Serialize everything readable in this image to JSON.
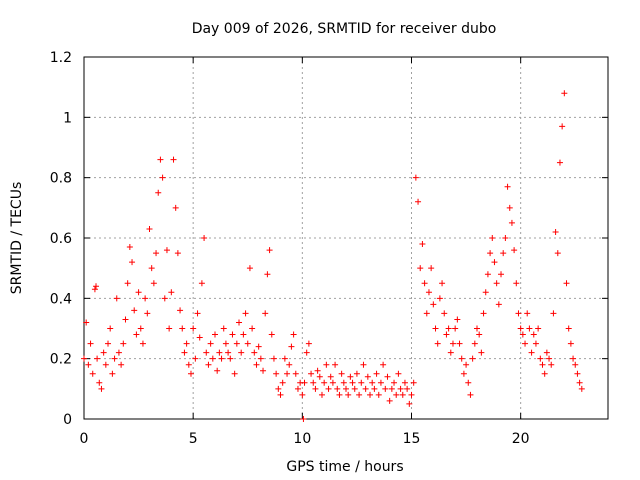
{
  "chart_data": {
    "type": "scatter",
    "title": "Day 009 of 2026, SRMTID for receiver dubo",
    "xlabel": "GPS time / hours",
    "ylabel": "SRMTID / TECUs",
    "xlim": [
      0,
      24
    ],
    "ylim": [
      0,
      1.2
    ],
    "x_ticks": [
      0,
      5,
      10,
      15,
      20
    ],
    "y_ticks": [
      0,
      0.2,
      0.4,
      0.6,
      0.8,
      1,
      1.2
    ],
    "x_tick_labels": [
      "0",
      "5",
      "10",
      "15",
      "20"
    ],
    "y_tick_labels": [
      "0",
      "0.2",
      "0.4",
      "0.6",
      "0.8",
      "1",
      "1.2"
    ],
    "grid": true,
    "marker": "+",
    "color": "#ff0000",
    "series": [
      {
        "name": "SRMTID",
        "x": [
          0.0,
          0.1,
          0.2,
          0.3,
          0.4,
          0.5,
          0.55,
          0.6,
          0.7,
          0.8,
          0.9,
          1.0,
          1.1,
          1.2,
          1.3,
          1.4,
          1.5,
          1.6,
          1.7,
          1.8,
          1.9,
          2.0,
          2.1,
          2.2,
          2.3,
          2.4,
          2.5,
          2.6,
          2.7,
          2.8,
          2.9,
          3.0,
          3.1,
          3.2,
          3.3,
          3.4,
          3.5,
          3.6,
          3.7,
          3.8,
          3.9,
          4.0,
          4.1,
          4.2,
          4.3,
          4.4,
          4.5,
          4.6,
          4.7,
          4.8,
          4.9,
          5.0,
          5.1,
          5.2,
          5.3,
          5.4,
          5.5,
          5.6,
          5.7,
          5.8,
          5.9,
          6.0,
          6.1,
          6.2,
          6.3,
          6.4,
          6.5,
          6.6,
          6.7,
          6.8,
          6.9,
          7.0,
          7.1,
          7.2,
          7.3,
          7.4,
          7.5,
          7.6,
          7.7,
          7.8,
          7.9,
          8.0,
          8.1,
          8.2,
          8.3,
          8.4,
          8.5,
          8.6,
          8.7,
          8.8,
          8.9,
          9.0,
          9.1,
          9.2,
          9.3,
          9.4,
          9.5,
          9.6,
          9.7,
          9.8,
          9.9,
          10.0,
          10.05,
          10.1,
          10.2,
          10.3,
          10.4,
          10.5,
          10.6,
          10.7,
          10.8,
          10.9,
          11.0,
          11.1,
          11.2,
          11.3,
          11.4,
          11.5,
          11.6,
          11.7,
          11.8,
          11.9,
          12.0,
          12.1,
          12.2,
          12.3,
          12.4,
          12.5,
          12.6,
          12.7,
          12.8,
          12.9,
          13.0,
          13.1,
          13.2,
          13.3,
          13.4,
          13.5,
          13.6,
          13.7,
          13.8,
          13.9,
          14.0,
          14.1,
          14.2,
          14.3,
          14.4,
          14.5,
          14.6,
          14.7,
          14.8,
          14.9,
          15.0,
          15.1,
          15.2,
          15.3,
          15.4,
          15.5,
          15.6,
          15.7,
          15.8,
          15.9,
          16.0,
          16.1,
          16.2,
          16.3,
          16.4,
          16.5,
          16.6,
          16.7,
          16.8,
          16.9,
          17.0,
          17.1,
          17.2,
          17.3,
          17.4,
          17.5,
          17.6,
          17.7,
          17.8,
          17.9,
          18.0,
          18.1,
          18.2,
          18.3,
          18.4,
          18.5,
          18.6,
          18.7,
          18.8,
          18.9,
          19.0,
          19.1,
          19.2,
          19.3,
          19.4,
          19.5,
          19.6,
          19.7,
          19.8,
          19.9,
          20.0,
          20.1,
          20.2,
          20.3,
          20.4,
          20.5,
          20.6,
          20.7,
          20.8,
          20.9,
          21.0,
          21.1,
          21.2,
          21.3,
          21.4,
          21.5,
          21.6,
          21.7,
          21.8,
          21.9,
          22.0,
          22.1,
          22.2,
          22.3,
          22.4,
          22.5,
          22.6,
          22.7,
          22.8
        ],
        "y": [
          0.2,
          0.32,
          0.18,
          0.25,
          0.15,
          0.43,
          0.44,
          0.2,
          0.12,
          0.1,
          0.22,
          0.18,
          0.25,
          0.3,
          0.15,
          0.2,
          0.4,
          0.22,
          0.18,
          0.25,
          0.33,
          0.45,
          0.57,
          0.52,
          0.36,
          0.28,
          0.42,
          0.3,
          0.25,
          0.4,
          0.35,
          0.63,
          0.5,
          0.45,
          0.55,
          0.75,
          0.86,
          0.8,
          0.4,
          0.56,
          0.3,
          0.42,
          0.86,
          0.7,
          0.55,
          0.36,
          0.3,
          0.22,
          0.25,
          0.18,
          0.15,
          0.3,
          0.2,
          0.35,
          0.27,
          0.45,
          0.6,
          0.22,
          0.18,
          0.25,
          0.2,
          0.28,
          0.16,
          0.22,
          0.2,
          0.3,
          0.25,
          0.22,
          0.2,
          0.28,
          0.15,
          0.25,
          0.32,
          0.22,
          0.28,
          0.35,
          0.25,
          0.5,
          0.3,
          0.22,
          0.18,
          0.24,
          0.2,
          0.16,
          0.35,
          0.48,
          0.56,
          0.28,
          0.2,
          0.15,
          0.1,
          0.08,
          0.12,
          0.2,
          0.15,
          0.18,
          0.24,
          0.28,
          0.15,
          0.1,
          0.12,
          0.08,
          0.0,
          0.12,
          0.22,
          0.25,
          0.15,
          0.12,
          0.1,
          0.16,
          0.14,
          0.08,
          0.12,
          0.18,
          0.1,
          0.14,
          0.12,
          0.18,
          0.1,
          0.08,
          0.15,
          0.12,
          0.1,
          0.08,
          0.14,
          0.12,
          0.1,
          0.15,
          0.08,
          0.12,
          0.18,
          0.1,
          0.14,
          0.08,
          0.12,
          0.1,
          0.15,
          0.08,
          0.12,
          0.18,
          0.1,
          0.14,
          0.06,
          0.1,
          0.12,
          0.08,
          0.15,
          0.1,
          0.08,
          0.12,
          0.1,
          0.05,
          0.08,
          0.12,
          0.8,
          0.72,
          0.5,
          0.58,
          0.45,
          0.35,
          0.42,
          0.5,
          0.38,
          0.3,
          0.25,
          0.4,
          0.45,
          0.35,
          0.28,
          0.3,
          0.22,
          0.25,
          0.3,
          0.33,
          0.25,
          0.2,
          0.15,
          0.18,
          0.12,
          0.08,
          0.2,
          0.25,
          0.3,
          0.28,
          0.22,
          0.35,
          0.42,
          0.48,
          0.55,
          0.6,
          0.52,
          0.45,
          0.38,
          0.48,
          0.55,
          0.6,
          0.77,
          0.7,
          0.65,
          0.56,
          0.45,
          0.35,
          0.3,
          0.28,
          0.25,
          0.35,
          0.3,
          0.22,
          0.28,
          0.25,
          0.3,
          0.2,
          0.18,
          0.15,
          0.22,
          0.2,
          0.18,
          0.35,
          0.62,
          0.55,
          0.85,
          0.97,
          1.08,
          0.45,
          0.3,
          0.25,
          0.2,
          0.18,
          0.15,
          0.12,
          0.1
        ]
      }
    ]
  }
}
